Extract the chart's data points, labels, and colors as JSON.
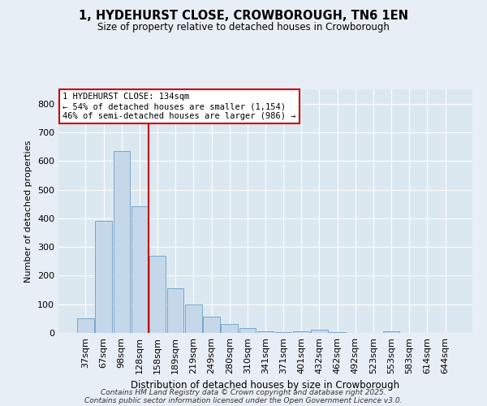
{
  "title_line1": "1, HYDEHURST CLOSE, CROWBOROUGH, TN6 1EN",
  "title_line2": "Size of property relative to detached houses in Crowborough",
  "xlabel": "Distribution of detached houses by size in Crowborough",
  "ylabel": "Number of detached properties",
  "categories": [
    "37sqm",
    "67sqm",
    "98sqm",
    "128sqm",
    "158sqm",
    "189sqm",
    "219sqm",
    "249sqm",
    "280sqm",
    "310sqm",
    "341sqm",
    "371sqm",
    "401sqm",
    "432sqm",
    "462sqm",
    "492sqm",
    "523sqm",
    "553sqm",
    "583sqm",
    "614sqm",
    "644sqm"
  ],
  "values": [
    50,
    390,
    635,
    443,
    270,
    155,
    98,
    57,
    30,
    18,
    7,
    3,
    5,
    12,
    3,
    0,
    0,
    7,
    0,
    0,
    0
  ],
  "bar_color": "#c5d8ea",
  "bar_edge_color": "#6b9ec8",
  "vline_x": 3.5,
  "vline_color": "#cc0000",
  "annotation_line1": "1 HYDEHURST CLOSE: 134sqm",
  "annotation_line2": "← 54% of detached houses are smaller (1,154)",
  "annotation_line3": "46% of semi-detached houses are larger (986) →",
  "annotation_box_color": "#ffffff",
  "annotation_box_edge": "#cc0000",
  "ylim": [
    0,
    850
  ],
  "yticks": [
    0,
    100,
    200,
    300,
    400,
    500,
    600,
    700,
    800
  ],
  "background_color": "#dce8f0",
  "grid_color": "#ffffff",
  "fig_bg_color": "#e8eef5",
  "footer_line1": "Contains HM Land Registry data © Crown copyright and database right 2025.",
  "footer_line2": "Contains public sector information licensed under the Open Government Licence v3.0."
}
